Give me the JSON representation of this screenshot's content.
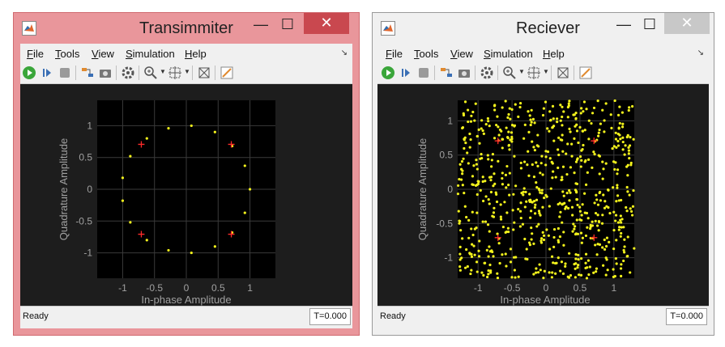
{
  "windows": [
    {
      "id": "tx",
      "title": "Transimmiter",
      "menu": [
        "File",
        "Tools",
        "View",
        "Simulation",
        "Help"
      ],
      "status": "Ready",
      "time": "T=0.000",
      "ylabel": "Quadrature Amplitude",
      "xlabel": "In-phase Amplitude",
      "xticks": [
        "-1",
        "-0.5",
        "0",
        "0.5",
        "1"
      ],
      "yticks": [
        "1",
        "0.5",
        "0",
        "-0.5",
        "-1"
      ]
    },
    {
      "id": "rx",
      "title": "Reciever",
      "menu": [
        "File",
        "Tools",
        "View",
        "Simulation",
        "Help"
      ],
      "status": "Ready",
      "time": "T=0.000",
      "ylabel": "Quadrature Amplitude",
      "xlabel": "In-phase Amplitude",
      "xticks": [
        "-1",
        "-0.5",
        "0",
        "0.5",
        "1"
      ],
      "yticks": [
        "1",
        "0.5",
        "0",
        "-0.5",
        "-1"
      ]
    }
  ],
  "colors": {
    "point": "#f2f21c",
    "reference": "#ff2a2a",
    "plot_bg": "#000000",
    "figure_bg": "#1d1d1d",
    "grid": "#3a3a3a",
    "axis_text": "#a0a0a0"
  },
  "icons": {
    "toolbar": [
      "run-icon",
      "step-forward-icon",
      "stop-icon",
      "signal-config-icon",
      "snapshot-icon",
      "settings-icon",
      "zoom-in-icon",
      "pan-zoom-icon",
      "autoscale-icon",
      "style-icon"
    ]
  },
  "chart_data": [
    {
      "type": "scatter",
      "title": "",
      "xlabel": "In-phase Amplitude",
      "ylabel": "Quadrature Amplitude",
      "xlim": [
        -1.4,
        1.4
      ],
      "ylim": [
        -1.4,
        1.4
      ],
      "grid": true,
      "series": [
        {
          "points": [
            [
              0.08,
              1.0
            ],
            [
              0.45,
              0.9
            ],
            [
              0.72,
              0.68
            ],
            [
              0.92,
              0.37
            ],
            [
              1.0,
              0.0
            ],
            [
              0.92,
              -0.37
            ],
            [
              0.72,
              -0.68
            ],
            [
              0.45,
              -0.9
            ],
            [
              0.08,
              -1.0
            ],
            [
              -0.28,
              -0.96
            ],
            [
              -0.62,
              -0.8
            ],
            [
              -0.88,
              -0.52
            ],
            [
              -1.0,
              -0.18
            ],
            [
              -1.0,
              0.18
            ],
            [
              -0.88,
              0.52
            ],
            [
              -0.62,
              0.8
            ],
            [
              -0.28,
              0.96
            ]
          ]
        },
        {
          "points": [
            [
              0.707,
              0.707
            ],
            [
              -0.707,
              0.707
            ],
            [
              -0.707,
              -0.707
            ],
            [
              0.707,
              -0.707
            ]
          ]
        }
      ]
    },
    {
      "type": "scatter",
      "title": "",
      "xlabel": "In-phase Amplitude",
      "ylabel": "Quadrature Amplitude",
      "xlim": [
        -1.3,
        1.3
      ],
      "ylim": [
        -1.3,
        1.3
      ],
      "grid": true,
      "series": [
        {
          "points_description_count": 700,
          "distribution": "uniform",
          "range": [
            -1.3,
            1.3
          ]
        },
        {
          "points": [
            [
              0.707,
              0.707
            ],
            [
              -0.707,
              0.707
            ],
            [
              -0.707,
              -0.707
            ],
            [
              0.707,
              -0.707
            ]
          ]
        }
      ]
    }
  ]
}
